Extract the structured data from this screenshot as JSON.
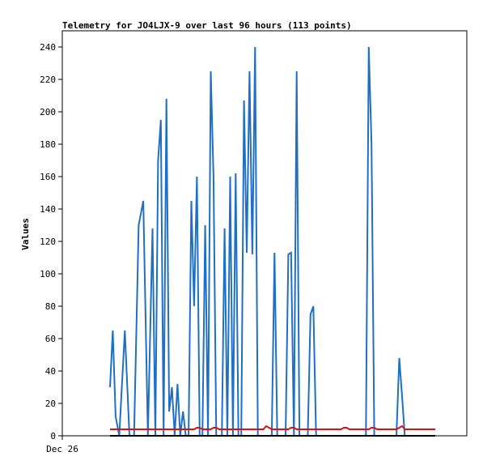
{
  "chart_data": {
    "type": "line",
    "title": "Telemetry for JO4LJX-9 over last 96 hours (113 points)",
    "ylabel": "Values",
    "xlabel": "",
    "x_tick_labels": [
      "Dec 26"
    ],
    "ylim": [
      0,
      250
    ],
    "y_ticks": [
      0,
      20,
      40,
      60,
      80,
      100,
      120,
      140,
      160,
      180,
      200,
      220,
      240
    ],
    "grid": false,
    "legend": "none",
    "x": [
      1.0,
      1.3,
      1.6,
      2.0,
      2.6,
      3.1,
      3.6,
      4.1,
      4.6,
      5.1,
      5.6,
      5.9,
      6.2,
      6.5,
      6.8,
      7.1,
      7.4,
      7.7,
      8.0,
      8.3,
      8.6,
      8.9,
      9.2,
      9.5,
      9.8,
      10.1,
      10.4,
      10.7,
      11.0,
      11.3,
      11.6,
      11.9,
      12.2,
      12.5,
      12.8,
      13.1,
      13.4,
      13.7,
      14.0,
      14.3,
      14.6,
      14.9,
      15.2,
      15.5,
      15.8,
      16.1,
      16.4,
      16.7,
      17.0,
      17.3,
      17.6,
      17.9,
      18.2,
      18.5,
      18.8,
      19.1,
      19.4,
      19.7,
      20.0,
      20.3,
      20.6,
      20.9,
      21.2,
      21.5,
      21.8,
      22.1,
      22.4,
      22.7,
      23.0,
      23.3,
      23.6,
      23.9,
      24.2,
      24.5,
      24.8,
      25.1,
      25.4,
      25.7,
      26.0,
      26.3,
      26.6,
      26.9,
      27.2,
      27.5,
      27.8,
      28.1,
      28.4,
      28.7,
      29.0,
      29.3,
      29.6,
      29.9,
      30.2,
      30.5,
      30.8,
      31.1,
      31.4,
      31.7,
      32.0,
      32.3,
      32.6,
      32.9,
      33.2,
      33.5,
      33.8,
      34.1,
      34.4,
      34.7,
      35.0,
      35.3,
      35.6,
      35.9,
      36.2
    ],
    "series": [
      {
        "color": "#1f6fc4",
        "values": [
          30,
          65,
          12,
          0,
          65,
          0,
          0,
          130,
          145,
          0,
          128,
          0,
          170,
          195,
          0,
          208,
          15,
          30,
          0,
          32,
          0,
          15,
          0,
          0,
          145,
          80,
          160,
          0,
          0,
          130,
          0,
          225,
          160,
          0,
          0,
          0,
          128,
          0,
          160,
          0,
          162,
          0,
          0,
          207,
          113,
          225,
          112,
          240,
          0,
          0,
          0,
          0,
          0,
          0,
          113,
          0,
          0,
          0,
          0,
          112,
          113,
          0,
          225,
          0,
          0,
          0,
          0,
          75,
          80,
          0,
          0,
          0,
          0,
          0,
          0,
          0,
          0,
          0,
          0,
          0,
          0,
          0,
          0,
          0,
          0,
          0,
          0,
          0,
          240,
          180,
          0,
          0,
          0,
          0,
          0,
          0,
          0,
          0,
          0,
          48,
          25,
          0,
          0,
          0,
          0,
          0,
          0,
          0,
          0,
          0,
          0,
          0,
          0
        ]
      },
      {
        "color": "#e01010",
        "values": [
          4,
          4,
          4,
          4,
          4,
          4,
          4,
          4,
          4,
          4,
          4,
          4,
          4,
          4,
          4,
          4,
          4,
          4,
          4,
          4,
          4,
          4,
          4,
          4,
          4,
          4,
          5,
          5,
          4,
          4,
          4,
          4,
          5,
          5,
          4,
          4,
          4,
          4,
          4,
          4,
          4,
          4,
          4,
          4,
          4,
          4,
          4,
          4,
          4,
          4,
          4,
          6,
          5,
          4,
          4,
          4,
          4,
          4,
          4,
          4,
          5,
          5,
          4,
          4,
          4,
          4,
          4,
          4,
          4,
          4,
          4,
          4,
          4,
          4,
          4,
          4,
          4,
          4,
          4,
          5,
          5,
          4,
          4,
          4,
          4,
          4,
          4,
          4,
          4,
          5,
          5,
          4,
          4,
          4,
          4,
          4,
          4,
          4,
          4,
          5,
          6,
          4,
          4,
          4,
          4,
          4,
          4,
          4,
          4,
          4,
          4,
          4,
          4
        ]
      },
      {
        "color": "#000000",
        "values": [
          0,
          0,
          0,
          0,
          0,
          0,
          0,
          0,
          0,
          0,
          0,
          0,
          0,
          0,
          0,
          0,
          0,
          0,
          0,
          0,
          0,
          0,
          0,
          0,
          0,
          0,
          0,
          0,
          0,
          0,
          0,
          0,
          0,
          0,
          0,
          0,
          0,
          0,
          0,
          0,
          0,
          0,
          0,
          0,
          0,
          0,
          0,
          0,
          0,
          0,
          0,
          0,
          0,
          0,
          0,
          0,
          0,
          0,
          0,
          0,
          0,
          0,
          0,
          0,
          0,
          0,
          0,
          0,
          0,
          0,
          0,
          0,
          0,
          0,
          0,
          0,
          0,
          0,
          0,
          0,
          0,
          0,
          0,
          0,
          0,
          0,
          0,
          0,
          0,
          0,
          0,
          0,
          0,
          0,
          0,
          0,
          0,
          0,
          0,
          0,
          0,
          0,
          0,
          0,
          0,
          0,
          0,
          0,
          0,
          0,
          0,
          0,
          0
        ]
      }
    ]
  }
}
